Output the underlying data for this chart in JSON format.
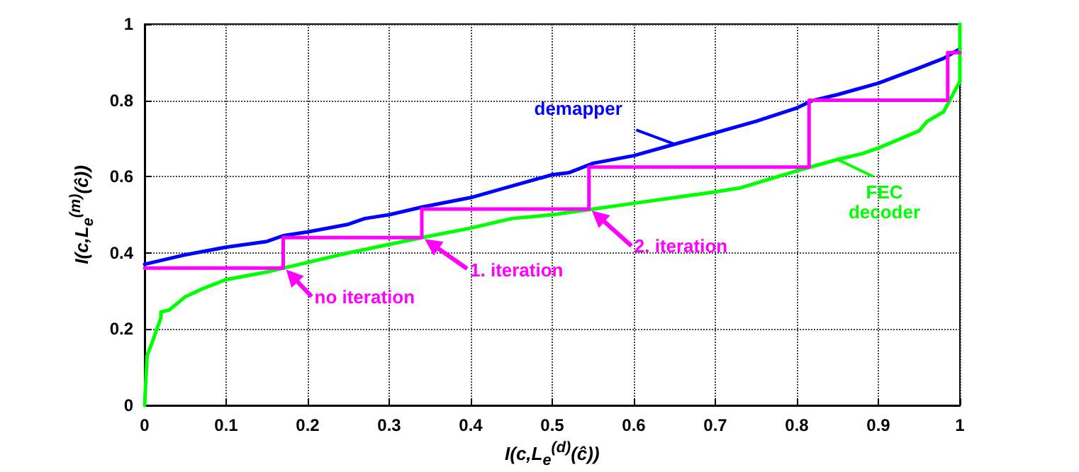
{
  "chart_data": {
    "type": "line",
    "xlabel": "I(c,L$_{e}$$^{(d)}$(ĉ))",
    "ylabel": "I(c,L$_{e}$$^{(m)}$(ĉ))",
    "xlim": [
      0,
      1
    ],
    "ylim": [
      0,
      1
    ],
    "xticks": [
      0,
      0.1,
      0.2,
      0.3,
      0.4,
      0.5,
      0.6,
      0.7,
      0.8,
      0.9,
      1
    ],
    "yticks": [
      0,
      0.2,
      0.4,
      0.6,
      0.8,
      1
    ],
    "grid": true,
    "marker": "none",
    "line_style": "solid",
    "series": [
      {
        "name": "demapper",
        "color": "#0000ff",
        "x": [
          0,
          0.05,
          0.1,
          0.15,
          0.17,
          0.2,
          0.25,
          0.27,
          0.3,
          0.34,
          0.4,
          0.45,
          0.5,
          0.52,
          0.55,
          0.6,
          0.65,
          0.7,
          0.75,
          0.8,
          0.82,
          0.85,
          0.9,
          0.95,
          0.98,
          1
        ],
        "values": [
          0.37,
          0.395,
          0.415,
          0.43,
          0.445,
          0.455,
          0.475,
          0.49,
          0.5,
          0.52,
          0.545,
          0.575,
          0.605,
          0.61,
          0.635,
          0.655,
          0.685,
          0.715,
          0.745,
          0.78,
          0.8,
          0.815,
          0.845,
          0.885,
          0.91,
          0.935
        ]
      },
      {
        "name": "FEC decoder",
        "color": "#00ff00",
        "x": [
          0,
          0.003,
          0.01,
          0.02,
          0.02,
          0.03,
          0.05,
          0.07,
          0.1,
          0.15,
          0.17,
          0.25,
          0.34,
          0.4,
          0.45,
          0.5,
          0.55,
          0.6,
          0.65,
          0.7,
          0.73,
          0.8,
          0.85,
          0.88,
          0.9,
          0.95,
          0.96,
          0.98,
          0.99,
          1,
          1
        ],
        "values": [
          0,
          0.13,
          0.17,
          0.23,
          0.245,
          0.25,
          0.285,
          0.305,
          0.33,
          0.35,
          0.36,
          0.4,
          0.44,
          0.465,
          0.49,
          0.5,
          0.515,
          0.53,
          0.545,
          0.56,
          0.57,
          0.615,
          0.645,
          0.66,
          0.675,
          0.72,
          0.745,
          0.77,
          0.81,
          0.85,
          1
        ]
      },
      {
        "color": "#ff00ff",
        "x": [
          0,
          0.17,
          0.17,
          0.34,
          0.34,
          0.545,
          0.545,
          0.815,
          0.815,
          0.985,
          0.985,
          1
        ],
        "values": [
          0.36,
          0.36,
          0.44,
          0.44,
          0.515,
          0.515,
          0.625,
          0.625,
          0.8,
          0.8,
          0.925,
          0.925
        ]
      }
    ],
    "annotations": [
      {
        "text": "no iteration",
        "x": 0.17,
        "y": 0.36
      },
      {
        "text": "1. iteration",
        "x": 0.34,
        "y": 0.44
      },
      {
        "text": "2. iteration",
        "x": 0.545,
        "y": 0.515
      }
    ]
  }
}
